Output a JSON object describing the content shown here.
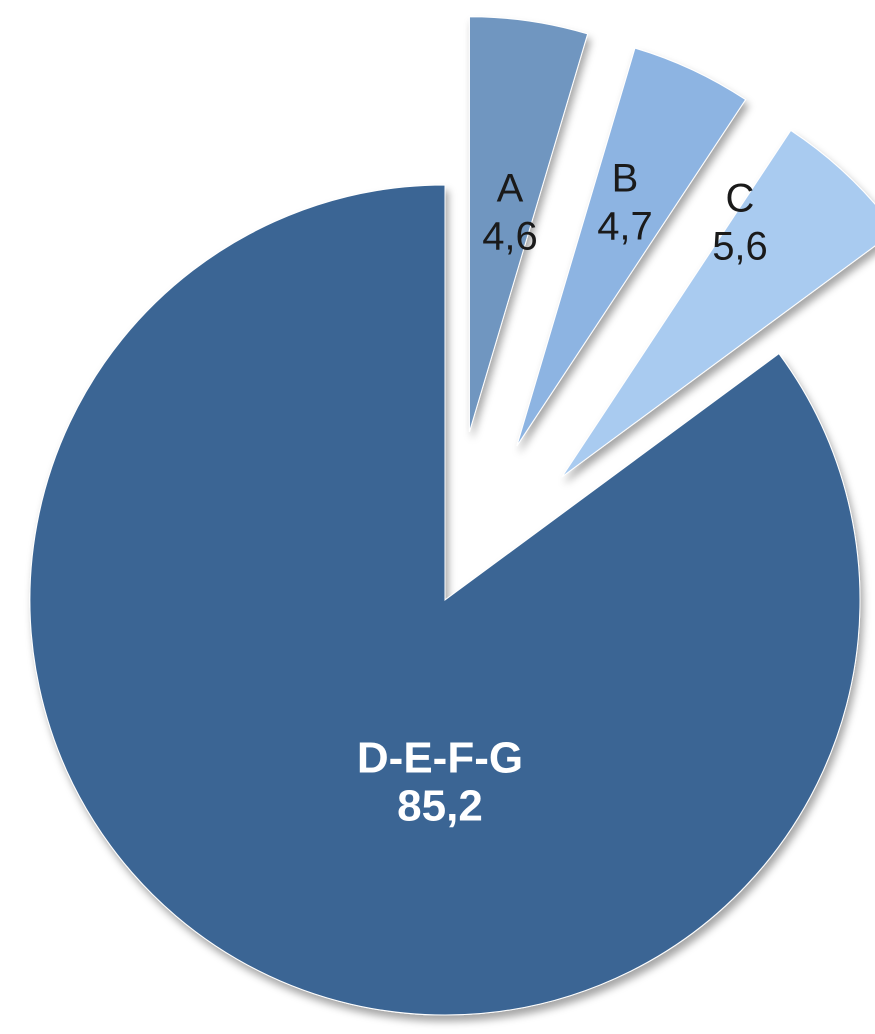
{
  "chart_data": {
    "type": "pie",
    "categories": [
      "A",
      "B",
      "C",
      "D-E-F-G"
    ],
    "values": [
      4.6,
      4.7,
      5.6,
      85.2
    ],
    "value_labels": [
      "4,6",
      "4,7",
      "5,6",
      "85,2"
    ],
    "colors": [
      "#7096c0",
      "#8db4e2",
      "#a9cbf0",
      "#3a6594"
    ]
  }
}
